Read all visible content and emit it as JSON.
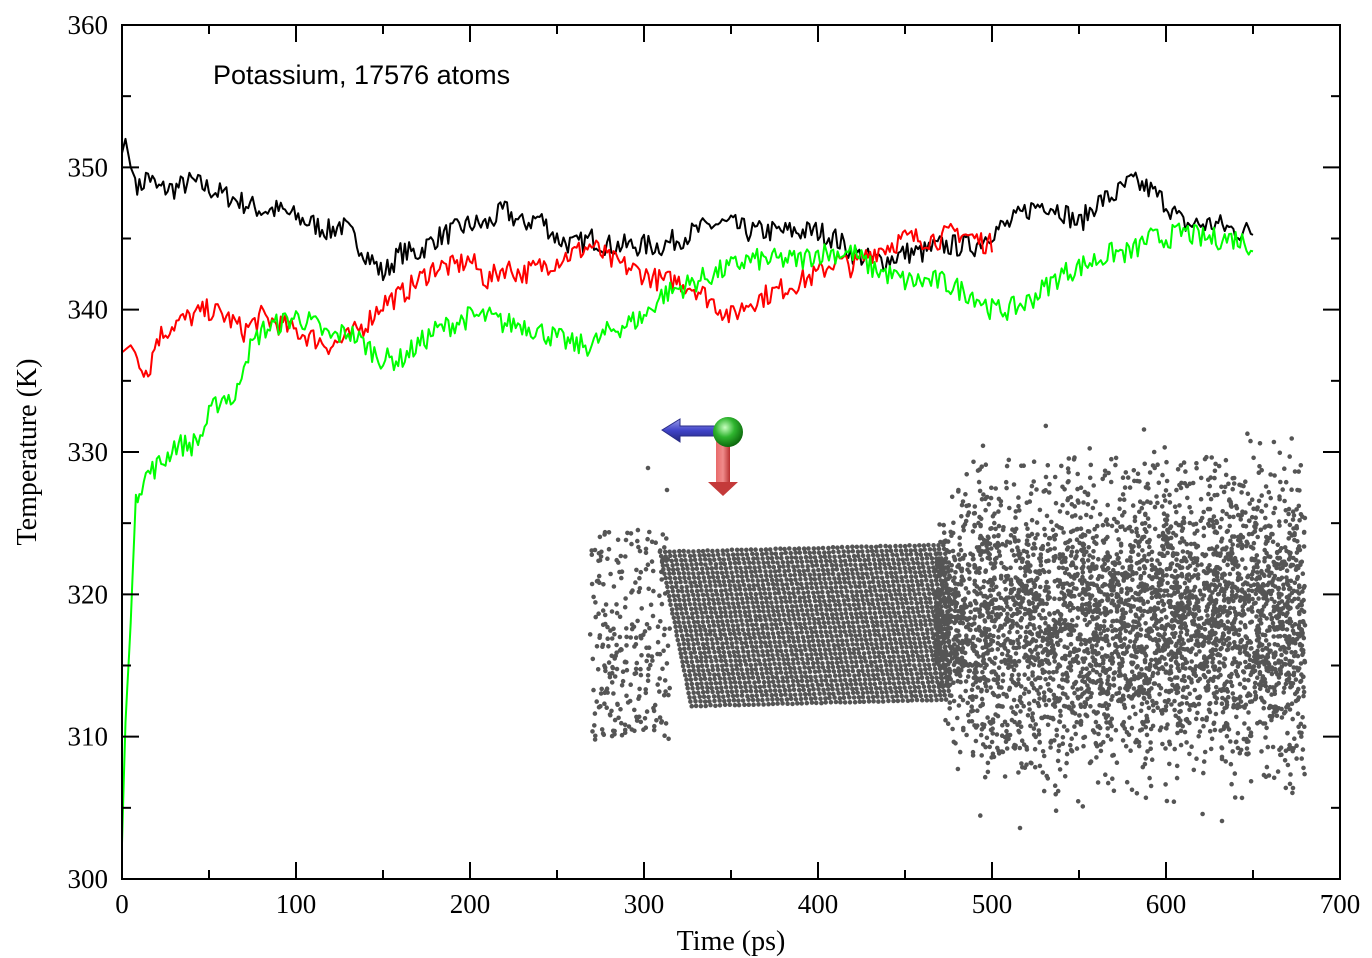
{
  "chart_data": {
    "type": "line",
    "title": "",
    "annotation": "Potassium, 17576 atoms",
    "xlabel": "Time (ps)",
    "ylabel": "Temperature (K)",
    "xlim": [
      0,
      700
    ],
    "ylim": [
      300,
      360
    ],
    "xticks": [
      0,
      100,
      200,
      300,
      400,
      500,
      600,
      700
    ],
    "yticks": [
      300,
      310,
      320,
      330,
      340,
      350,
      360
    ],
    "grid": false,
    "legend": "none",
    "series": [
      {
        "color": "#000000",
        "x": [
          0,
          2,
          5,
          10,
          15,
          20,
          30,
          40,
          50,
          60,
          70,
          80,
          90,
          100,
          110,
          120,
          125,
          130,
          140,
          150,
          160,
          170,
          180,
          190,
          200,
          210,
          220,
          230,
          240,
          250,
          260,
          270,
          280,
          290,
          300,
          310,
          320,
          330,
          340,
          350,
          360,
          370,
          380,
          390,
          400,
          410,
          420,
          430,
          440,
          450,
          460,
          470,
          480,
          490,
          500,
          510,
          520,
          530,
          540,
          550,
          560,
          570,
          580,
          590,
          600,
          610,
          620,
          630,
          640,
          650
        ],
        "y": [
          351,
          352,
          350,
          348.5,
          349.5,
          348.5,
          348.5,
          349,
          348.5,
          348,
          347.5,
          347,
          347,
          346.5,
          346,
          345.5,
          346,
          345.5,
          344,
          342.5,
          344,
          344,
          345,
          345.5,
          346,
          346,
          347,
          346,
          346.5,
          345,
          344.5,
          345,
          344.5,
          344.5,
          344.5,
          344.5,
          345,
          345.5,
          346,
          346,
          345.5,
          345.5,
          345.5,
          345.5,
          345.5,
          345,
          344,
          343.5,
          343.5,
          344,
          344,
          344.5,
          344.5,
          344.5,
          345.5,
          346,
          347,
          347.5,
          347,
          346,
          347.5,
          348,
          349,
          348.5,
          347.5,
          346,
          346,
          346,
          345.5,
          345.5
        ]
      },
      {
        "color": "#ff0000",
        "x": [
          0,
          5,
          10,
          15,
          20,
          30,
          40,
          50,
          60,
          70,
          80,
          90,
          100,
          110,
          120,
          130,
          140,
          150,
          160,
          170,
          180,
          190,
          200,
          210,
          220,
          230,
          240,
          250,
          260,
          270,
          280,
          290,
          300,
          310,
          320,
          330,
          340,
          350,
          360,
          370,
          380,
          390,
          400,
          410,
          420,
          430,
          440,
          450,
          460,
          470,
          480,
          490,
          500
        ],
        "y": [
          337,
          337.5,
          336.5,
          335.5,
          338,
          339,
          339.5,
          340,
          339.5,
          338.5,
          339.5,
          339,
          338.5,
          338,
          337.5,
          338,
          339,
          340.5,
          341,
          342,
          343,
          343,
          343.5,
          342,
          343,
          342.5,
          343,
          343.5,
          344,
          344.5,
          343.5,
          343,
          342.5,
          342,
          342,
          341.5,
          340.5,
          339.5,
          340.5,
          341,
          341.5,
          342,
          342.5,
          343.5,
          343,
          344,
          344.5,
          345,
          345,
          345,
          345.5,
          345,
          344.5
        ]
      },
      {
        "color": "#00ff00",
        "x": [
          0,
          2,
          5,
          8,
          10,
          15,
          20,
          25,
          30,
          35,
          40,
          45,
          50,
          55,
          60,
          65,
          70,
          80,
          90,
          100,
          110,
          120,
          130,
          140,
          150,
          160,
          170,
          180,
          190,
          200,
          210,
          220,
          230,
          240,
          250,
          260,
          270,
          280,
          290,
          300,
          310,
          320,
          330,
          340,
          350,
          360,
          370,
          380,
          390,
          400,
          410,
          420,
          430,
          440,
          450,
          460,
          470,
          480,
          490,
          500,
          510,
          520,
          530,
          540,
          550,
          560,
          570,
          580,
          590,
          600,
          610,
          620,
          630,
          640,
          650
        ],
        "y": [
          302.5,
          311,
          318,
          327,
          327.5,
          328.5,
          329,
          329.5,
          330.5,
          330.5,
          330.5,
          331,
          332.5,
          333.5,
          334,
          333.5,
          336.5,
          338.5,
          339,
          339.5,
          339,
          338,
          338.5,
          337.5,
          336.5,
          336.5,
          337.5,
          338.5,
          339,
          339.5,
          339.5,
          339,
          339,
          338.5,
          338,
          337.5,
          337.5,
          338.5,
          339,
          339.5,
          341,
          341.5,
          342,
          342.5,
          343,
          343.5,
          343.5,
          343.5,
          343.5,
          344,
          344,
          344,
          343,
          342.5,
          342,
          342,
          342,
          341.5,
          341,
          340,
          340,
          340.5,
          341.5,
          342.5,
          343,
          343.5,
          344,
          344,
          345,
          345,
          345.5,
          345,
          345,
          345,
          344.5
        ]
      }
    ]
  }
}
